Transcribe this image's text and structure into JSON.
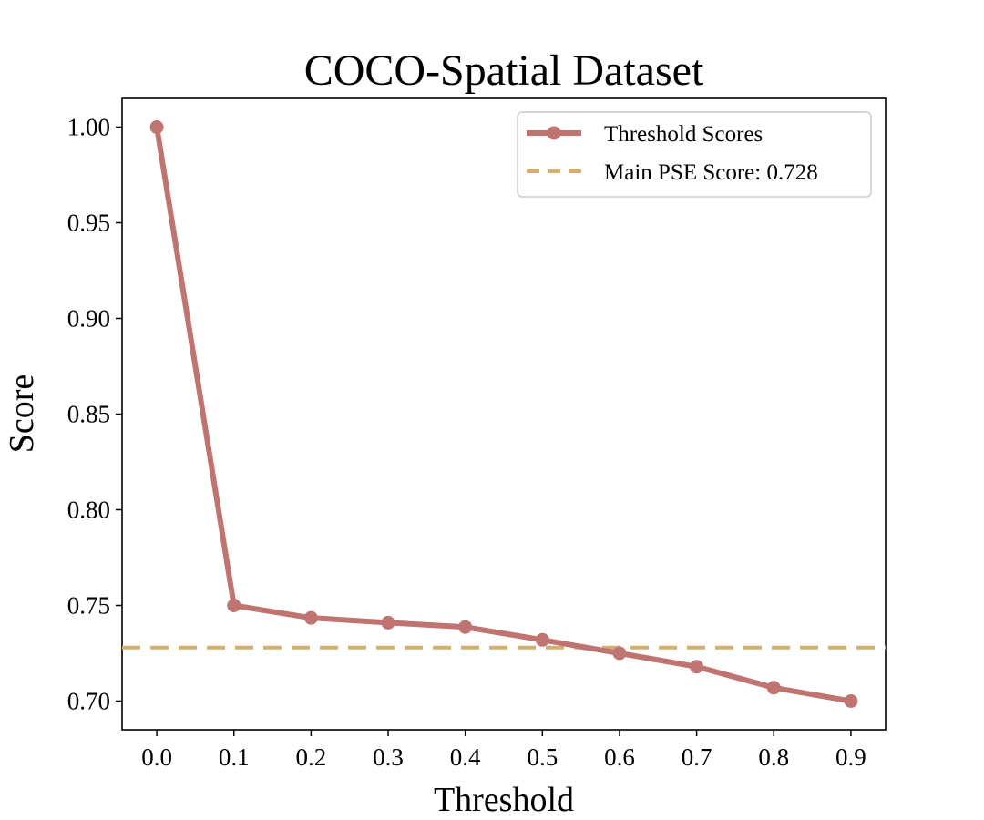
{
  "chart_data": {
    "type": "line",
    "title": "COCO-Spatial Dataset",
    "xlabel": "Threshold",
    "ylabel": "Score",
    "x": [
      0.0,
      0.1,
      0.2,
      0.3,
      0.4,
      0.5,
      0.6,
      0.7,
      0.8,
      0.9
    ],
    "series": [
      {
        "name": "Threshold Scores",
        "values": [
          1.0,
          0.75,
          0.7435,
          0.741,
          0.7387,
          0.732,
          0.725,
          0.718,
          0.707,
          0.7
        ],
        "color": "#c07472",
        "marker": "circle"
      }
    ],
    "reference_line": {
      "name": "Main PSE Score: 0.728",
      "value": 0.728,
      "color": "#d4b06b",
      "style": "dashed"
    },
    "xlim": [
      -0.045,
      0.945
    ],
    "ylim": [
      0.685,
      1.015
    ],
    "xticks": [
      "0.0",
      "0.1",
      "0.2",
      "0.3",
      "0.4",
      "0.5",
      "0.6",
      "0.7",
      "0.8",
      "0.9"
    ],
    "yticks": [
      "0.70",
      "0.75",
      "0.80",
      "0.85",
      "0.90",
      "0.95",
      "1.00"
    ],
    "ytick_values": [
      0.7,
      0.75,
      0.8,
      0.85,
      0.9,
      0.95,
      1.0
    ],
    "legend_position": "top-right",
    "grid": false
  }
}
